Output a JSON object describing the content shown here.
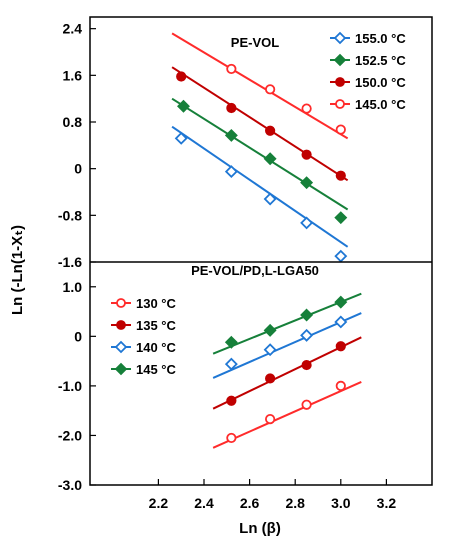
{
  "figure": {
    "xlabel": "Ln (β)",
    "ylabel": "Ln (-Ln(1-Xₜ)"
  },
  "chart_data": [
    {
      "type": "scatter",
      "title": "PE-VOL",
      "xlim": [
        1.9,
        3.4
      ],
      "ylim": [
        -1.6,
        2.6
      ],
      "yticks": [
        "2.4",
        "1.6",
        "0.8",
        "0",
        "-0.8",
        "-1.6"
      ],
      "legend_position": "top-right",
      "series": [
        {
          "name": "155.0 °C",
          "color": "#1f77d4",
          "marker": "diamond-open",
          "x": [
            2.3,
            2.52,
            2.69,
            2.85,
            3.0
          ],
          "y": [
            0.52,
            -0.05,
            -0.52,
            -0.93,
            -1.5
          ],
          "fit": [
            [
              2.26,
              0.72
            ],
            [
              3.03,
              -1.34
            ]
          ]
        },
        {
          "name": "152.5 °C",
          "color": "#16803a",
          "marker": "diamond-filled",
          "x": [
            2.31,
            2.52,
            2.69,
            2.85,
            3.0
          ],
          "y": [
            1.07,
            0.57,
            0.17,
            -0.24,
            -0.84
          ],
          "fit": [
            [
              2.26,
              1.2
            ],
            [
              3.03,
              -0.7
            ]
          ]
        },
        {
          "name": "150.0 °C",
          "color": "#c00000",
          "marker": "circle-filled",
          "x": [
            2.3,
            2.52,
            2.69,
            2.85,
            3.0
          ],
          "y": [
            1.58,
            1.04,
            0.65,
            0.24,
            -0.12
          ],
          "fit": [
            [
              2.26,
              1.74
            ],
            [
              3.03,
              -0.2
            ]
          ]
        },
        {
          "name": "145.0 °C",
          "color": "#ff2b2b",
          "marker": "circle-open",
          "x": [
            2.52,
            2.69,
            2.85,
            3.0
          ],
          "y": [
            1.71,
            1.36,
            1.03,
            0.67
          ],
          "fit": [
            [
              2.26,
              2.32
            ],
            [
              3.03,
              0.52
            ]
          ]
        }
      ]
    },
    {
      "type": "scatter",
      "title": "PE-VOL/PD,L-LGA50",
      "xlabel": "Ln (β)",
      "xlim": [
        1.9,
        3.4
      ],
      "ylim": [
        -3.0,
        1.5
      ],
      "xticks": [
        "2.2",
        "2.4",
        "2.6",
        "2.8",
        "3.0",
        "3.2"
      ],
      "yticks": [
        "1.0",
        "0",
        "-1.0",
        "-2.0",
        "-3.0"
      ],
      "legend_position": "top-left",
      "series": [
        {
          "name": "130 °C",
          "color": "#ff2b2b",
          "marker": "circle-open",
          "x": [
            2.52,
            2.69,
            2.85,
            3.0
          ],
          "y": [
            -2.05,
            -1.67,
            -1.38,
            -1.0
          ],
          "fit": [
            [
              2.44,
              -2.25
            ],
            [
              3.09,
              -0.92
            ]
          ]
        },
        {
          "name": "135 °C",
          "color": "#c00000",
          "marker": "circle-filled",
          "x": [
            2.52,
            2.69,
            2.85,
            3.0
          ],
          "y": [
            -1.3,
            -0.85,
            -0.58,
            -0.2
          ],
          "fit": [
            [
              2.44,
              -1.46
            ],
            [
              3.09,
              -0.02
            ]
          ]
        },
        {
          "name": "140 °C",
          "color": "#1f77d4",
          "marker": "diamond-open",
          "x": [
            2.52,
            2.69,
            2.85,
            3.0
          ],
          "y": [
            -0.56,
            -0.27,
            0.02,
            0.29
          ],
          "fit": [
            [
              2.44,
              -0.84
            ],
            [
              3.09,
              0.47
            ]
          ]
        },
        {
          "name": "145 °C",
          "color": "#16803a",
          "marker": "diamond-filled",
          "x": [
            2.52,
            2.69,
            2.85,
            3.0
          ],
          "y": [
            -0.12,
            0.12,
            0.43,
            0.69
          ],
          "fit": [
            [
              2.44,
              -0.35
            ],
            [
              3.09,
              0.86
            ]
          ]
        }
      ]
    }
  ]
}
